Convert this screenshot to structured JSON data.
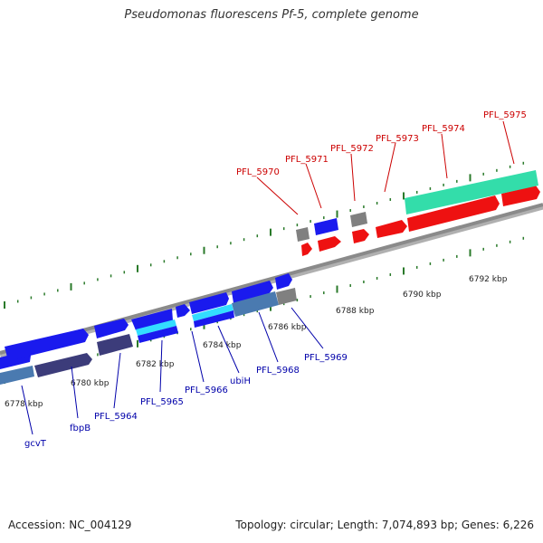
{
  "title": "Pseudomonas fluorescens Pf-5, complete genome",
  "footer": {
    "accession": "Accession: NC_004129",
    "summary": "Topology: circular; Length: 7,074,893 bp; Genes: 6,226"
  },
  "colors": {
    "forward_gene": "#1a1aee",
    "reverse_gene": "#ee1111",
    "neutral_gene": "#808080",
    "teal_gene": "#33ddaa",
    "cyan_gene": "#33ddff",
    "steelblue_gene": "#4a7ab0",
    "slate_gene": "#4a4a88",
    "tick": "#2a7a2a",
    "label_blue": "#0000aa",
    "label_red": "#cc0000"
  },
  "ticks": [
    {
      "kbp": 6778,
      "label": "6778 kbp"
    },
    {
      "kbp": 6780,
      "label": "6780 kbp"
    },
    {
      "kbp": 6782,
      "label": "6782 kbp"
    },
    {
      "kbp": 6784,
      "label": "6784 kbp"
    },
    {
      "kbp": 6786,
      "label": "6786 kbp"
    },
    {
      "kbp": 6788,
      "label": "6788 kbp"
    },
    {
      "kbp": 6790,
      "label": "6790 kbp"
    },
    {
      "kbp": 6792,
      "label": "6792 kbp"
    }
  ],
  "gene_labels_blue": [
    "gcvT",
    "fbpB",
    "PFL_5964",
    "PFL_5965",
    "PFL_5966",
    "ubiH",
    "PFL_5968",
    "PFL_5969"
  ],
  "gene_labels_red": [
    "PFL_5970",
    "PFL_5971",
    "PFL_5972",
    "PFL_5973",
    "PFL_5974",
    "PFL_5975"
  ]
}
